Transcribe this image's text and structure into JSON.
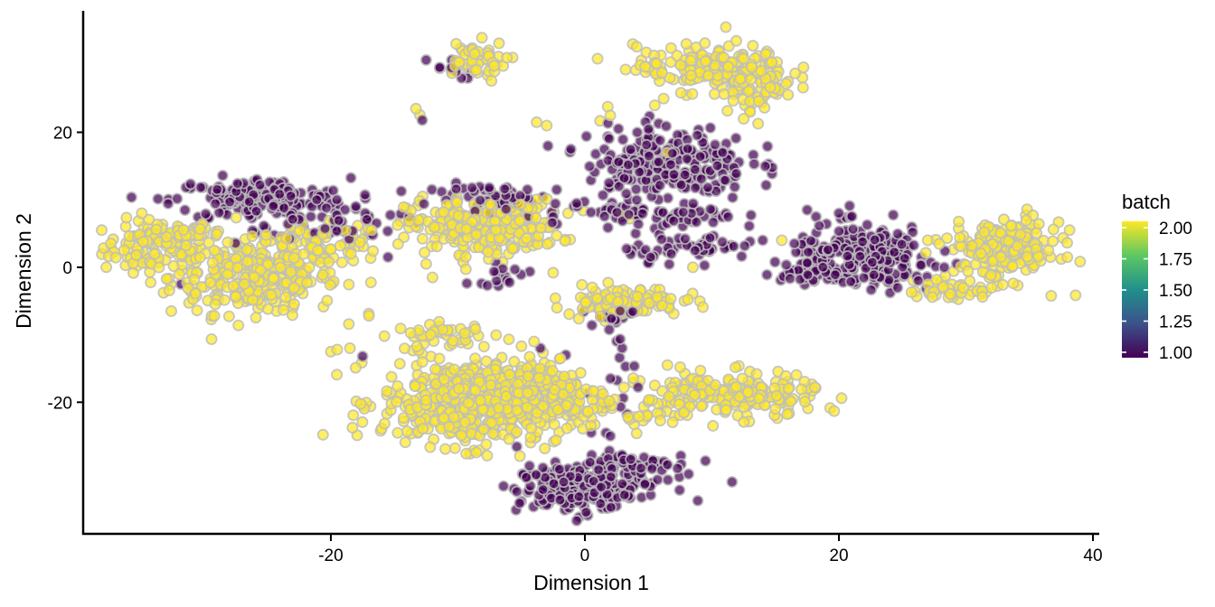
{
  "chart_data": {
    "type": "scatter",
    "xlabel": "Dimension 1",
    "ylabel": "Dimension 2",
    "xlim": [
      -39.5,
      40.5
    ],
    "ylim": [
      -39.5,
      38
    ],
    "x_ticks": [
      -20,
      0,
      20,
      40
    ],
    "y_ticks": [
      20,
      0,
      -20
    ],
    "x_tick_labels": [
      "-20",
      "0",
      "20",
      "40"
    ],
    "y_tick_labels": [
      "20",
      "0",
      "-20"
    ],
    "grid": false,
    "color_scale": {
      "variable": "batch",
      "palette": "viridis",
      "min": 1.0,
      "max": 2.0,
      "low_color": "#440154",
      "high_color": "#FDE725",
      "point_outline": "#BDBDBD",
      "ticks": [
        2.0,
        1.75,
        1.5,
        1.25,
        1.0
      ],
      "tick_labels": [
        "2.00",
        "1.75",
        "1.50",
        "1.25",
        "1.00"
      ]
    },
    "legend": {
      "title": "batch",
      "position": "right"
    },
    "clusters": [
      {
        "batch": 2,
        "cx": -33.5,
        "cy": 3.0,
        "sx": 2.2,
        "sy": 2.0,
        "n": 110
      },
      {
        "batch": 2,
        "cx": -26.0,
        "cy": -1.5,
        "sx": 3.3,
        "sy": 2.7,
        "n": 300
      },
      {
        "batch": 2,
        "cx": -21.0,
        "cy": 3.5,
        "sx": 2.8,
        "sy": 1.4,
        "n": 80
      },
      {
        "batch": 2,
        "cx": -31.0,
        "cy": 5.0,
        "sx": 1.5,
        "sy": 0.6,
        "n": 25
      },
      {
        "batch": 1,
        "cx": -25.5,
        "cy": 10.0,
        "sx": 3.5,
        "sy": 1.6,
        "n": 170
      },
      {
        "batch": 1,
        "cx": -19.5,
        "cy": 6.5,
        "sx": 2.6,
        "sy": 1.2,
        "n": 40
      },
      {
        "batch": 2,
        "cx": -9.0,
        "cy": 30.5,
        "sx": 1.4,
        "sy": 1.5,
        "n": 50
      },
      {
        "batch": 1,
        "cx": -11.0,
        "cy": 29.5,
        "sx": 1.2,
        "sy": 0.8,
        "n": 10
      },
      {
        "batch": 2,
        "cx": -8.0,
        "cy": 6.0,
        "sx": 3.0,
        "sy": 2.0,
        "n": 250
      },
      {
        "batch": 1,
        "cx": -6.0,
        "cy": 10.0,
        "sx": 3.0,
        "sy": 1.2,
        "n": 60
      },
      {
        "batch": 1,
        "cx": -6.5,
        "cy": -1.0,
        "sx": 1.3,
        "sy": 0.8,
        "n": 15
      },
      {
        "batch": 2,
        "cx": -11.0,
        "cy": -10.0,
        "sx": 2.0,
        "sy": 0.8,
        "n": 40
      },
      {
        "batch": 2,
        "cx": -9.0,
        "cy": -20.0,
        "sx": 3.5,
        "sy": 3.2,
        "n": 500
      },
      {
        "batch": 2,
        "cx": -3.0,
        "cy": -19.0,
        "sx": 2.5,
        "sy": 2.6,
        "n": 200
      },
      {
        "batch": 2,
        "cx": 3.0,
        "cy": -5.0,
        "sx": 2.3,
        "sy": 1.1,
        "n": 110
      },
      {
        "batch": 1,
        "cx": 2.0,
        "cy": -7.0,
        "sx": 1.0,
        "sy": 0.6,
        "n": 12
      },
      {
        "batch": 1,
        "cx": 2.5,
        "cy": -14.0,
        "sx": 0.8,
        "sy": 3.5,
        "n": 20
      },
      {
        "batch": 1,
        "cx": -1.0,
        "cy": -33.0,
        "sx": 2.2,
        "sy": 1.8,
        "n": 170
      },
      {
        "batch": 1,
        "cx": 3.0,
        "cy": -30.0,
        "sx": 2.6,
        "sy": 1.8,
        "n": 80
      },
      {
        "batch": 2,
        "cx": 10.0,
        "cy": 29.5,
        "sx": 3.0,
        "sy": 1.7,
        "n": 160
      },
      {
        "batch": 2,
        "cx": 13.5,
        "cy": 26.5,
        "sx": 1.5,
        "sy": 1.7,
        "n": 55
      },
      {
        "batch": 1,
        "cx": 6.5,
        "cy": 15.5,
        "sx": 3.2,
        "sy": 2.8,
        "n": 230
      },
      {
        "batch": 1,
        "cx": 6.0,
        "cy": 7.5,
        "sx": 3.0,
        "sy": 1.0,
        "n": 60
      },
      {
        "batch": 1,
        "cx": 8.5,
        "cy": 3.0,
        "sx": 2.6,
        "sy": 1.0,
        "n": 50
      },
      {
        "batch": 1,
        "cx": 22.0,
        "cy": 1.5,
        "sx": 2.8,
        "sy": 2.3,
        "n": 240
      },
      {
        "batch": 1,
        "cx": 17.5,
        "cy": -0.5,
        "sx": 1.4,
        "sy": 0.6,
        "n": 30
      },
      {
        "batch": 2,
        "cx": 33.0,
        "cy": 2.5,
        "sx": 2.2,
        "sy": 2.2,
        "n": 200
      },
      {
        "batch": 2,
        "cx": 29.0,
        "cy": -3.5,
        "sx": 1.8,
        "sy": 0.8,
        "n": 40
      },
      {
        "batch": 2,
        "cx": 11.5,
        "cy": -19.0,
        "sx": 3.4,
        "sy": 1.6,
        "n": 210
      },
      {
        "batch": 2,
        "cx": 6.0,
        "cy": -22.0,
        "sx": 1.6,
        "sy": 0.4,
        "n": 15
      }
    ],
    "scattered_points": [
      {
        "x": -13.3,
        "y": 23.5,
        "batch": 2
      },
      {
        "x": -13.0,
        "y": 22.6,
        "batch": 2
      },
      {
        "x": -12.8,
        "y": 21.8,
        "batch": 1
      },
      {
        "x": -13.1,
        "y": 7.0,
        "batch": 2
      },
      {
        "x": -12.5,
        "y": 0.5,
        "batch": 2
      },
      {
        "x": -12.0,
        "y": -1.5,
        "batch": 2
      },
      {
        "x": -20.0,
        "y": -12.5,
        "batch": 2
      },
      {
        "x": -19.5,
        "y": -12.2,
        "batch": 2
      },
      {
        "x": -18.5,
        "y": -12.0,
        "batch": 2
      },
      {
        "x": -17.5,
        "y": -13.2,
        "batch": 1
      },
      {
        "x": -17.0,
        "y": -7.2,
        "batch": 2
      },
      {
        "x": -17.3,
        "y": 8.0,
        "batch": 1
      },
      {
        "x": -31.8,
        "y": -2.5,
        "batch": 1
      },
      {
        "x": -15.5,
        "y": 1.5,
        "batch": 1
      },
      {
        "x": -3.8,
        "y": 21.5,
        "batch": 2
      },
      {
        "x": -3.0,
        "y": 21.0,
        "batch": 2
      },
      {
        "x": -2.5,
        "y": 7.5,
        "batch": 1
      },
      {
        "x": -2.2,
        "y": 6.4,
        "batch": 1
      },
      {
        "x": -2.5,
        "y": -0.8,
        "batch": 2
      },
      {
        "x": -2.2,
        "y": -6.0,
        "batch": 2
      },
      {
        "x": -4.0,
        "y": -11.0,
        "batch": 2
      },
      {
        "x": -3.5,
        "y": -12.0,
        "batch": 1
      },
      {
        "x": -1.5,
        "y": -13.0,
        "batch": 1
      },
      {
        "x": 1.0,
        "y": 30.9,
        "batch": 2
      },
      {
        "x": 1.2,
        "y": 21.7,
        "batch": 2
      },
      {
        "x": 1.8,
        "y": 23.8,
        "batch": 2
      },
      {
        "x": 2.0,
        "y": 22.5,
        "batch": 2
      },
      {
        "x": 3.0,
        "y": 8.0,
        "batch": 2
      },
      {
        "x": 3.5,
        "y": 7.2,
        "batch": 2
      },
      {
        "x": 4.0,
        "y": 5.0,
        "batch": 1
      },
      {
        "x": 2.0,
        "y": -25.0,
        "batch": 1
      },
      {
        "x": 0.5,
        "y": -24.5,
        "batch": 1
      },
      {
        "x": -0.5,
        "y": -23.0,
        "batch": 2
      },
      {
        "x": 3.5,
        "y": -22.5,
        "batch": 2
      },
      {
        "x": 5.5,
        "y": 24.0,
        "batch": 2
      },
      {
        "x": 6.2,
        "y": 25.0,
        "batch": 2
      },
      {
        "x": 8.0,
        "y": 25.5,
        "batch": 2
      },
      {
        "x": 12.5,
        "y": 22.0,
        "batch": 2
      },
      {
        "x": 6.5,
        "y": 17.0,
        "batch": 2
      },
      {
        "x": 8.5,
        "y": 0.0,
        "batch": 2
      },
      {
        "x": 14.0,
        "y": 4.0,
        "batch": 1
      },
      {
        "x": 15.5,
        "y": 4.0,
        "batch": 2
      },
      {
        "x": 16.5,
        "y": 3.5,
        "batch": 1
      },
      {
        "x": 17.5,
        "y": 8.5,
        "batch": 1
      },
      {
        "x": 18.2,
        "y": 7.5,
        "batch": 1
      },
      {
        "x": 20.0,
        "y": 8.0,
        "batch": 1
      },
      {
        "x": 16.0,
        "y": 27.5,
        "batch": 2
      },
      {
        "x": 27.0,
        "y": 4.0,
        "batch": 2
      },
      {
        "x": 26.5,
        "y": 1.5,
        "batch": 1
      },
      {
        "x": 6.5,
        "y": -14.5,
        "batch": 2
      },
      {
        "x": 7.5,
        "y": -14.8,
        "batch": 2
      },
      {
        "x": 5.5,
        "y": -17.5,
        "batch": 2
      },
      {
        "x": -9.5,
        "y": 2.5,
        "batch": 2
      },
      {
        "x": -6.0,
        "y": 2.0,
        "batch": 2
      }
    ]
  }
}
